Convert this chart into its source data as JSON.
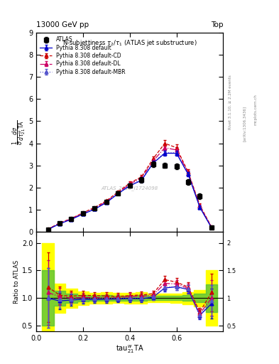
{
  "title_top": "13000 GeV pp",
  "title_right": "Top",
  "plot_title": "N-subjettiness $\\tau_2/\\tau_1$ (ATLAS jet substructure)",
  "xlabel": "tau$_{21}^{w}$TA",
  "ylabel_main": "$\\frac{1}{\\sigma}\\frac{d\\sigma}{d\\tau_{21}^{w}\\mathrm{TA}}$",
  "ylabel_ratio": "Ratio to ATLAS",
  "watermark": "ATLAS_2019_I1724098",
  "rivet_text": "Rivet 3.1.10, ≥ 2.2M events",
  "arxiv_text": "[arXiv:1306.3436]",
  "mcplots_text": "mcplots.cern.ch",
  "ylim_main": [
    0,
    9
  ],
  "ylim_ratio": [
    0.4,
    2.2
  ],
  "x_data": [
    0.05,
    0.1,
    0.15,
    0.2,
    0.25,
    0.3,
    0.35,
    0.4,
    0.45,
    0.5,
    0.55,
    0.6,
    0.65,
    0.7,
    0.75
  ],
  "atlas_y": [
    0.1,
    0.38,
    0.58,
    0.82,
    1.05,
    1.35,
    1.75,
    2.1,
    2.35,
    3.05,
    3.0,
    2.95,
    2.25,
    1.6,
    0.2
  ],
  "atlas_yerr": [
    0.05,
    0.05,
    0.05,
    0.05,
    0.05,
    0.07,
    0.08,
    0.1,
    0.12,
    0.12,
    0.12,
    0.12,
    0.12,
    0.12,
    0.05
  ],
  "default_y": [
    0.1,
    0.36,
    0.56,
    0.8,
    1.02,
    1.32,
    1.72,
    2.08,
    2.32,
    3.1,
    3.55,
    3.55,
    2.6,
    1.1,
    0.18
  ],
  "default_yerr": [
    0.02,
    0.03,
    0.03,
    0.04,
    0.04,
    0.05,
    0.06,
    0.07,
    0.08,
    0.1,
    0.12,
    0.12,
    0.1,
    0.08,
    0.03
  ],
  "cd_y": [
    0.12,
    0.4,
    0.6,
    0.86,
    1.1,
    1.4,
    1.8,
    2.2,
    2.48,
    3.3,
    4.0,
    3.8,
    2.7,
    1.2,
    0.22
  ],
  "cd_yerr": [
    0.02,
    0.03,
    0.03,
    0.04,
    0.04,
    0.06,
    0.07,
    0.08,
    0.09,
    0.11,
    0.15,
    0.14,
    0.12,
    0.09,
    0.04
  ],
  "dl_y": [
    0.11,
    0.39,
    0.58,
    0.83,
    1.06,
    1.36,
    1.76,
    2.16,
    2.43,
    3.2,
    3.8,
    3.7,
    2.65,
    1.15,
    0.2
  ],
  "dl_yerr": [
    0.02,
    0.03,
    0.03,
    0.04,
    0.04,
    0.05,
    0.06,
    0.08,
    0.09,
    0.11,
    0.14,
    0.13,
    0.11,
    0.09,
    0.04
  ],
  "mbr_y": [
    0.1,
    0.37,
    0.57,
    0.81,
    1.04,
    1.34,
    1.74,
    2.1,
    2.36,
    3.12,
    3.58,
    3.57,
    2.62,
    1.12,
    0.19
  ],
  "mbr_yerr": [
    0.02,
    0.03,
    0.03,
    0.04,
    0.04,
    0.05,
    0.06,
    0.07,
    0.08,
    0.1,
    0.12,
    0.12,
    0.1,
    0.08,
    0.03
  ],
  "color_default": "#0000cc",
  "color_cd": "#cc0000",
  "color_dl": "#cc0066",
  "color_mbr": "#5555cc",
  "color_atlas": "#000000",
  "band_yellow": "#ffff00",
  "band_green": "#44bb44",
  "background_color": "#ffffff",
  "xmin": 0.0,
  "xmax": 0.8
}
